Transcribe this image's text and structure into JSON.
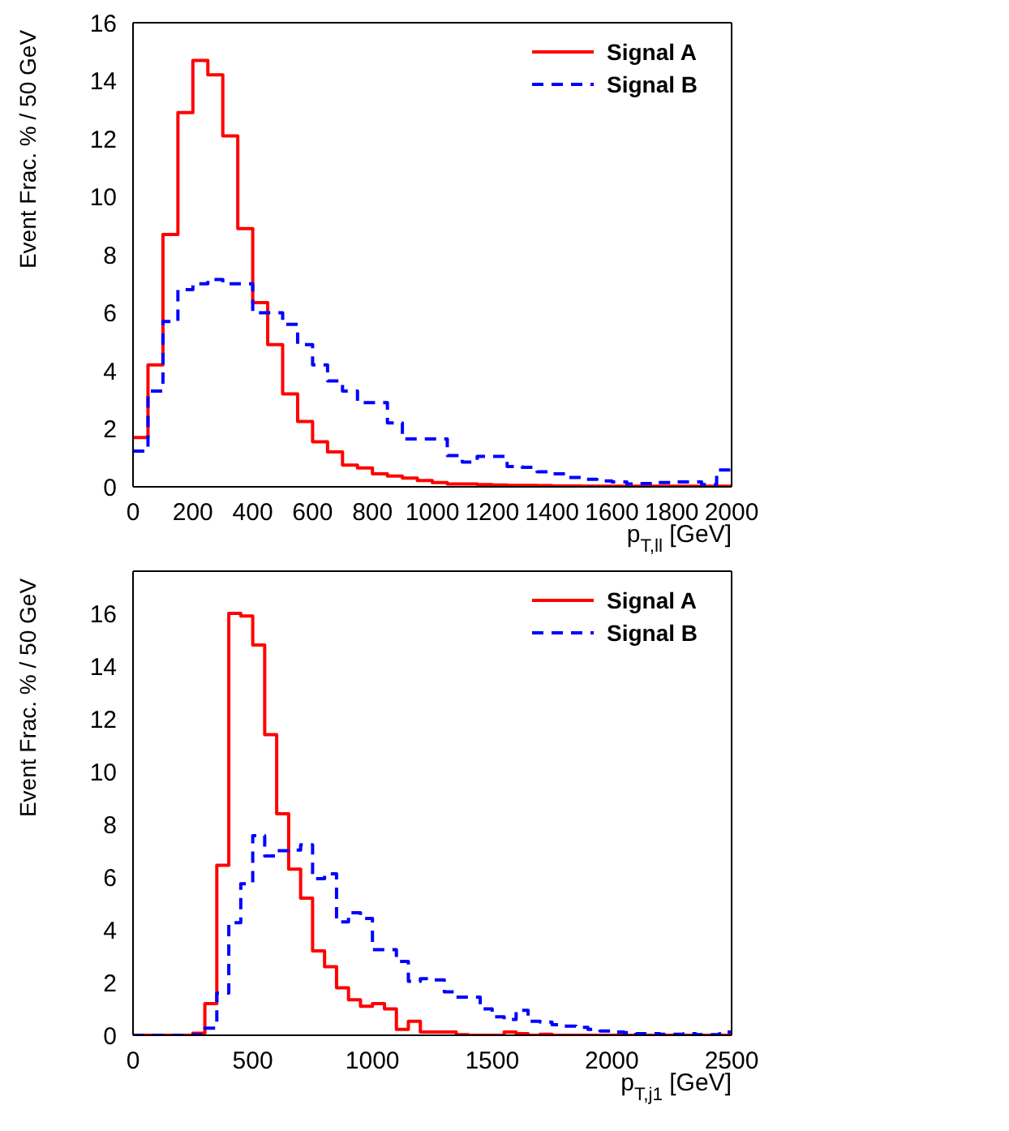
{
  "chart_data": [
    {
      "type": "histogram",
      "xlabel": "p$_{T,ll}$ [GeV]",
      "ylabel": "Event Frac. % / 50 GeV",
      "xlim": [
        0,
        2000
      ],
      "xticks": [
        0,
        200,
        400,
        600,
        800,
        1000,
        1200,
        1400,
        1600,
        1800,
        2000
      ],
      "ylim": [
        0,
        16
      ],
      "yticks": [
        0,
        2,
        4,
        6,
        8,
        10,
        12,
        14,
        16
      ],
      "grid": false,
      "legend": "top right",
      "bins": [
        0,
        50,
        100,
        150,
        200,
        250,
        300,
        350,
        400,
        450,
        500,
        550,
        600,
        650,
        700,
        750,
        800,
        850,
        900,
        950,
        1000,
        1050,
        1100,
        1150,
        1200,
        1250,
        1300,
        1350,
        1400,
        1450,
        1500,
        1550,
        1600,
        1650,
        1700,
        1750,
        1800,
        1850,
        1900,
        1950,
        2000
      ],
      "series": [
        {
          "name": "Signal A",
          "color": "#ff0000",
          "line_style": "solid",
          "values": [
            1.7,
            4.2,
            8.7,
            12.9,
            14.7,
            14.2,
            12.1,
            8.9,
            6.35,
            4.9,
            3.2,
            2.25,
            1.55,
            1.2,
            0.75,
            0.65,
            0.45,
            0.37,
            0.3,
            0.22,
            0.15,
            0.1,
            0.1,
            0.08,
            0.06,
            0.05,
            0.05,
            0.04,
            0.03,
            0.03,
            0.02,
            0.02,
            0.02,
            0.02,
            0.02,
            0.02,
            0.02,
            0.02,
            0.02,
            0.02
          ]
        },
        {
          "name": "Signal B",
          "color": "#0000ff",
          "line_style": "dashed",
          "values": [
            1.23,
            3.3,
            5.7,
            6.8,
            7.0,
            7.15,
            7.0,
            7.0,
            6.0,
            6.0,
            5.6,
            4.9,
            4.2,
            3.65,
            3.3,
            2.9,
            2.9,
            2.2,
            1.65,
            1.65,
            1.65,
            1.08,
            0.85,
            1.05,
            1.05,
            0.7,
            0.67,
            0.52,
            0.45,
            0.32,
            0.26,
            0.2,
            0.17,
            0.1,
            0.11,
            0.15,
            0.17,
            0.17,
            0.08,
            0.58
          ]
        }
      ]
    },
    {
      "type": "histogram",
      "xlabel": "p$_{T,j1}$ [GeV]",
      "ylabel": "Event Frac. % / 50 GeV",
      "xlim": [
        0,
        2500
      ],
      "xticks": [
        0,
        500,
        1000,
        1500,
        2000,
        2500
      ],
      "ylim": [
        0,
        17.6
      ],
      "yticks": [
        0,
        2,
        4,
        6,
        8,
        10,
        12,
        14,
        16
      ],
      "grid": false,
      "legend": "top right",
      "bins": [
        0,
        50,
        100,
        150,
        200,
        250,
        300,
        350,
        400,
        450,
        500,
        550,
        600,
        650,
        700,
        750,
        800,
        850,
        900,
        950,
        1000,
        1050,
        1100,
        1150,
        1200,
        1250,
        1300,
        1350,
        1400,
        1450,
        1500,
        1550,
        1600,
        1650,
        1700,
        1750,
        1800,
        1850,
        1900,
        1950,
        2000,
        2050,
        2100,
        2150,
        2200,
        2250,
        2300,
        2350,
        2400,
        2450,
        2500
      ],
      "series": [
        {
          "name": "Signal A",
          "color": "#ff0000",
          "line_style": "solid",
          "values": [
            0,
            0,
            0,
            0,
            0,
            0.08,
            1.2,
            6.45,
            16.0,
            15.9,
            14.8,
            11.4,
            8.4,
            6.3,
            5.2,
            3.2,
            2.6,
            1.8,
            1.35,
            1.1,
            1.2,
            1.0,
            0.22,
            0.53,
            0.12,
            0.12,
            0.12,
            0.02,
            0,
            0,
            0,
            0.12,
            0.06,
            0,
            0.04,
            0,
            0,
            0,
            0,
            0,
            0,
            0,
            0,
            0,
            0,
            0,
            0,
            0,
            0,
            0
          ]
        },
        {
          "name": "Signal B",
          "color": "#0000ff",
          "line_style": "dashed",
          "values": [
            0,
            0,
            0,
            0,
            0,
            0.02,
            0.27,
            1.6,
            4.27,
            5.75,
            7.57,
            6.8,
            7.0,
            7.02,
            7.22,
            5.94,
            6.12,
            4.3,
            4.65,
            4.43,
            3.25,
            3.25,
            2.8,
            2.05,
            2.15,
            2.1,
            1.65,
            1.45,
            1.45,
            1.0,
            0.7,
            0.6,
            0.95,
            0.53,
            0.5,
            0.4,
            0.35,
            0.3,
            0.22,
            0.16,
            0.12,
            0.1,
            0.06,
            0.06,
            0.04,
            0.04,
            0.06,
            0.02,
            0.02,
            0.12
          ]
        }
      ]
    }
  ]
}
